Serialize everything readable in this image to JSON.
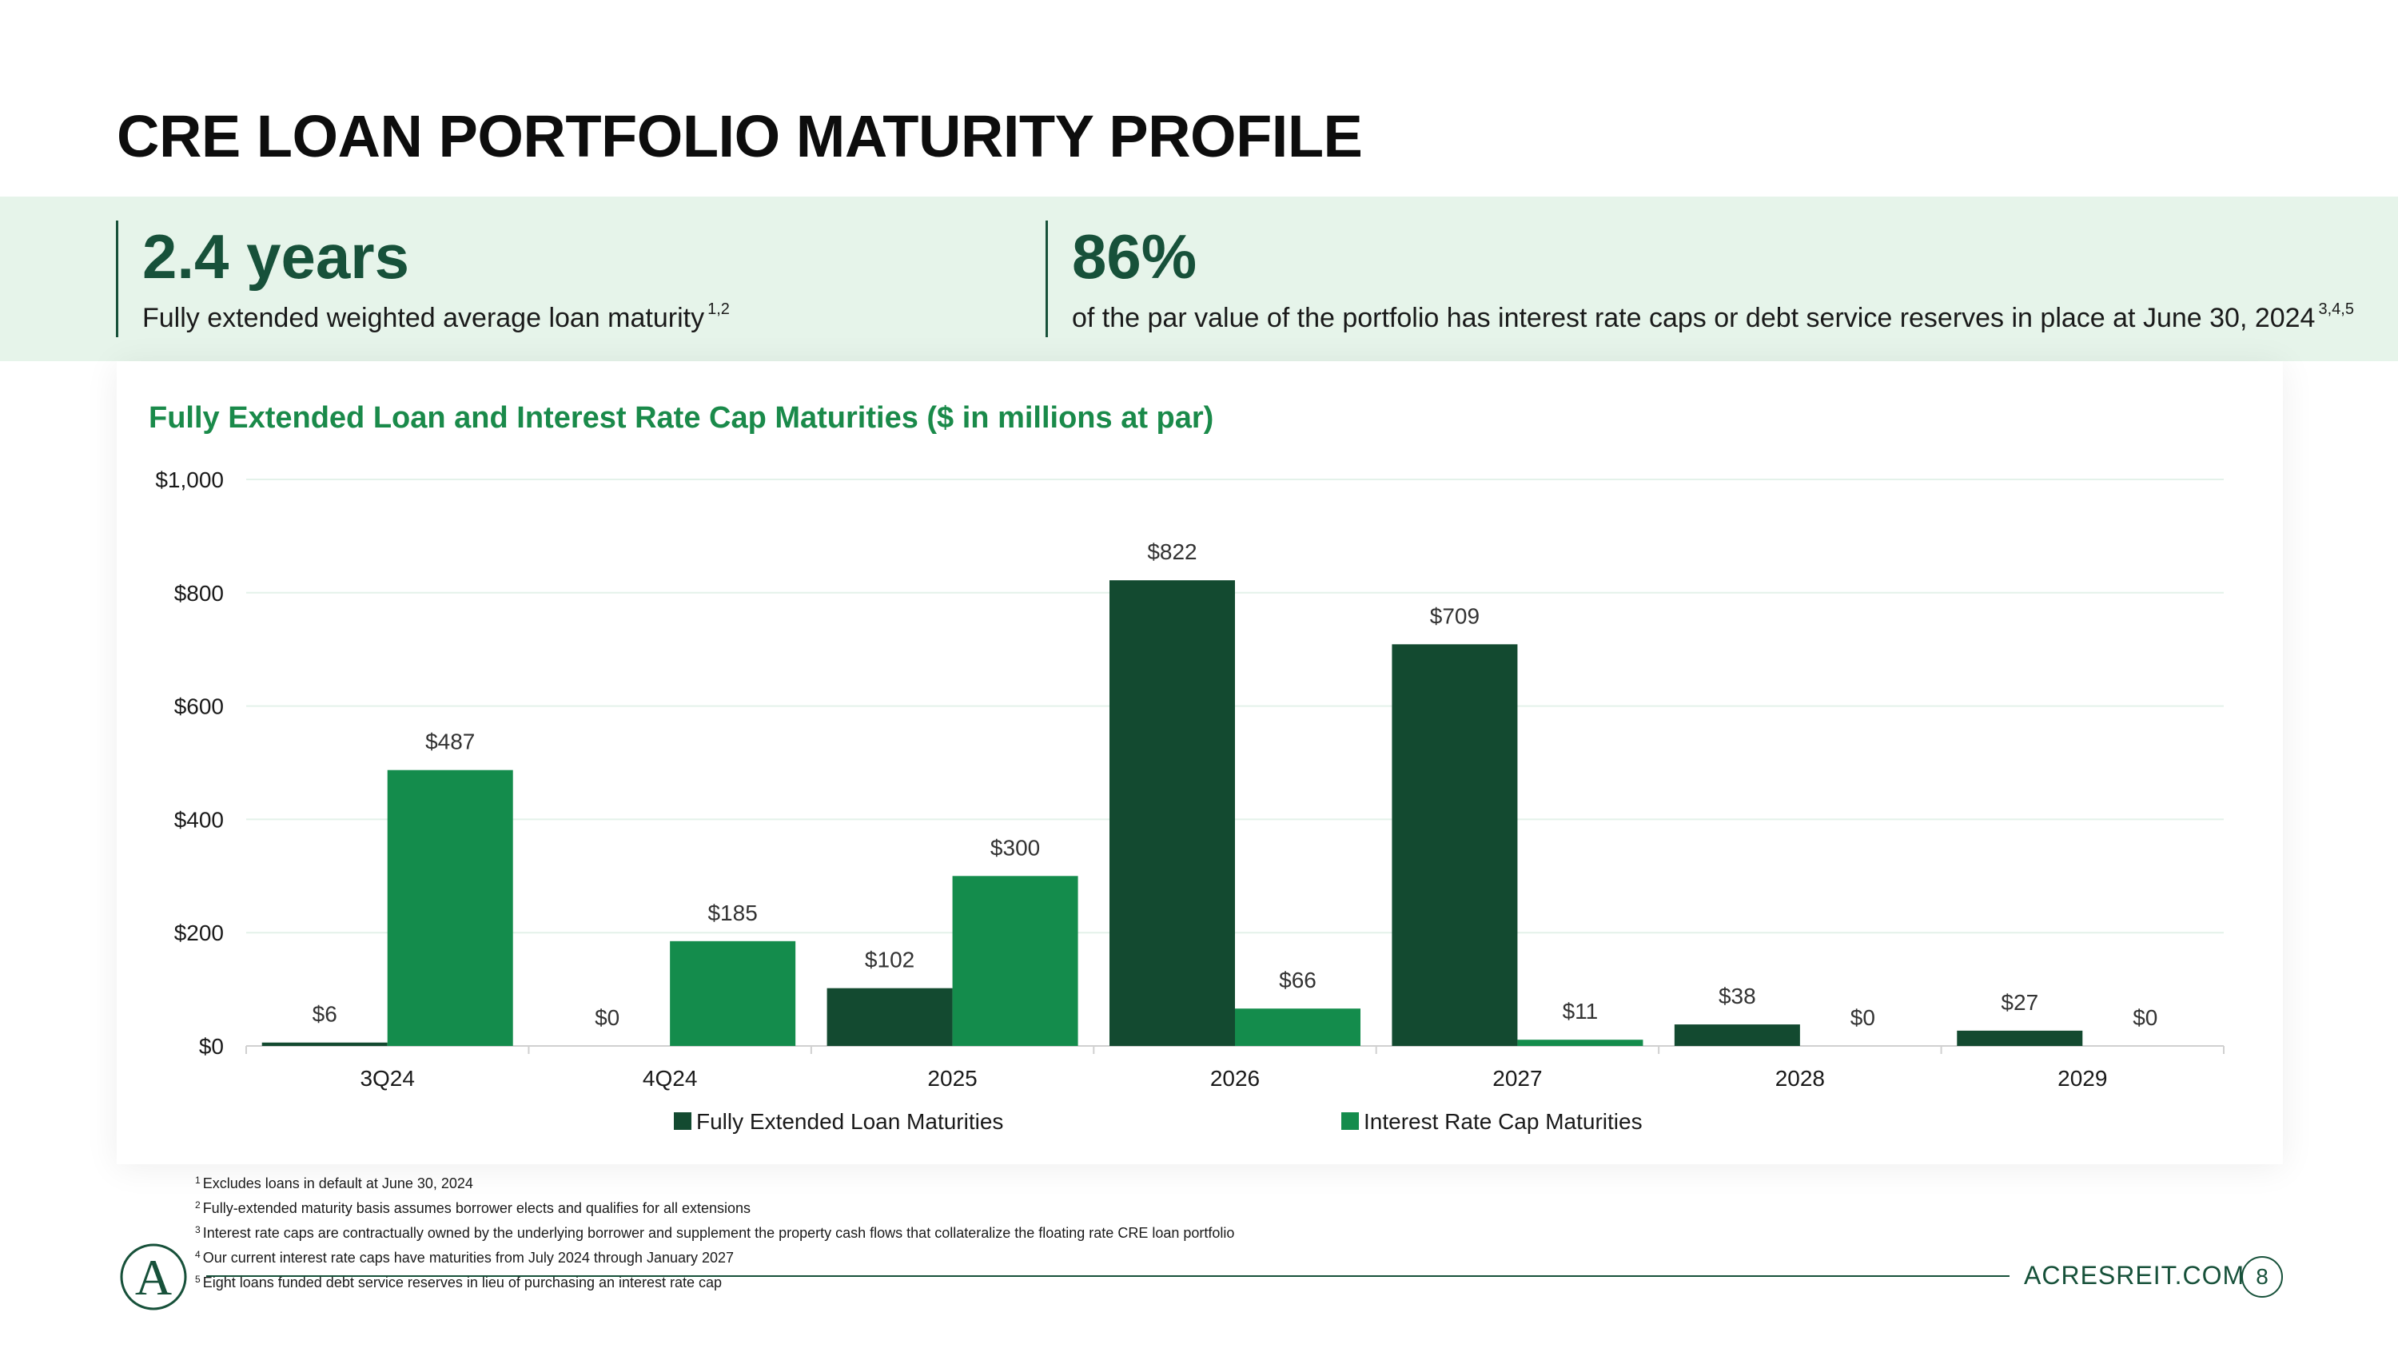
{
  "title": "CRE LOAN PORTFOLIO MATURITY PROFILE",
  "kpis": [
    {
      "value": "2.4 years",
      "description": "Fully extended weighted average loan maturity",
      "footnote_refs": "1,2"
    },
    {
      "value": "86%",
      "description": "of the par value of the portfolio has interest rate caps or debt service reserves in place at June 30, 2024",
      "footnote_refs": "3,4,5"
    }
  ],
  "colors": {
    "dark_green": "#134a30",
    "bright_green": "#148c4c",
    "band": "#e6f4ea",
    "title_green": "#1a8a4a"
  },
  "chart_data": {
    "type": "bar",
    "title": "Fully Extended Loan and Interest Rate Cap Maturities ($ in millions at par)",
    "categories": [
      "3Q24",
      "4Q24",
      "2025",
      "2026",
      "2027",
      "2028",
      "2029"
    ],
    "series": [
      {
        "name": "Fully Extended Loan Maturities",
        "values": [
          6,
          0,
          102,
          822,
          709,
          38,
          27
        ],
        "labels": [
          "$6",
          "$0",
          "$102",
          "$822",
          "$709",
          "$38",
          "$27"
        ],
        "color": "#134a30"
      },
      {
        "name": "Interest Rate Cap Maturities",
        "values": [
          487,
          185,
          300,
          66,
          11,
          0,
          0
        ],
        "labels": [
          "$487",
          "$185",
          "$300",
          "$66",
          "$11",
          "$0",
          "$0"
        ],
        "color": "#148c4c"
      }
    ],
    "ylim": [
      0,
      1000
    ],
    "yticks": [
      0,
      200,
      400,
      600,
      800,
      1000
    ],
    "ytick_labels": [
      "$0",
      "$200",
      "$400",
      "$600",
      "$800",
      "$1,000"
    ],
    "grid": true,
    "legend": "bottom-center",
    "xlabel": "",
    "ylabel": ""
  },
  "footnotes": [
    {
      "num": "1",
      "text": "Excludes loans in default at June 30, 2024"
    },
    {
      "num": "2",
      "text": "Fully-extended maturity basis assumes borrower elects and qualifies for all extensions"
    },
    {
      "num": "3",
      "text": "Interest rate caps are contractually owned by the underlying borrower and supplement the property cash flows that collateralize the floating rate CRE loan portfolio"
    },
    {
      "num": "4",
      "text": "Our current interest rate caps have maturities from July 2024 through January 2027"
    },
    {
      "num": "5",
      "text": "Eight loans funded debt service reserves in lieu of purchasing an interest rate cap"
    }
  ],
  "footer": {
    "logo_letter": "A",
    "site": "ACRESREIT.COM",
    "page_number": "8"
  }
}
